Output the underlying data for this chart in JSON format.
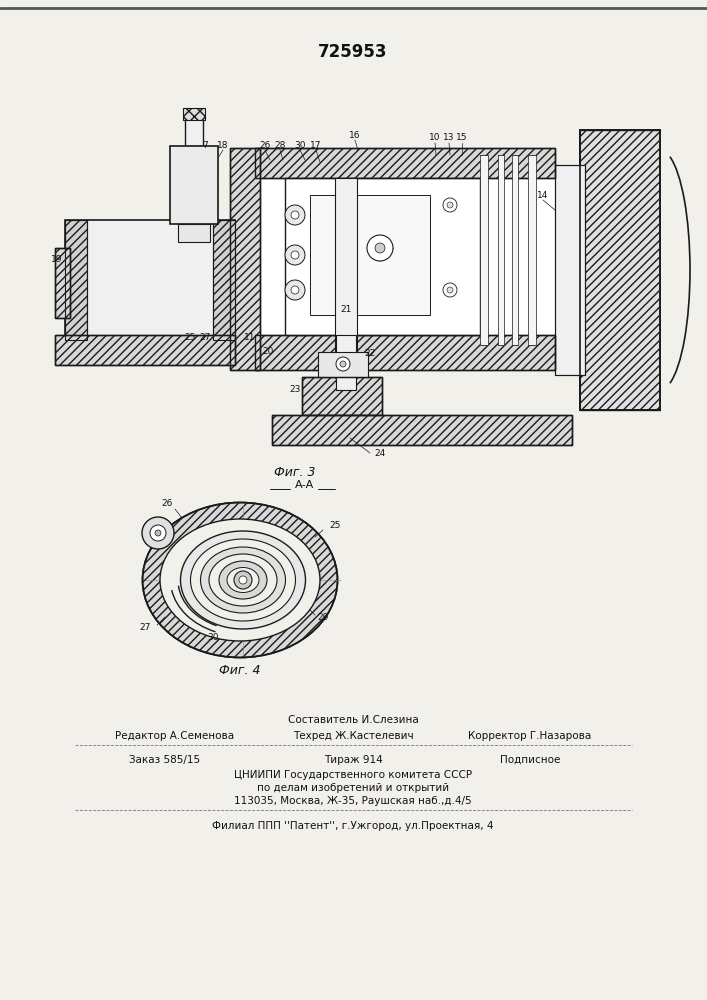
{
  "patent_number": "725953",
  "fig3_label": "Фиг. 3",
  "fig4_label": "Фиг. 4",
  "fig4_section_label": "А-А",
  "editor_line": "Редактор А.Семенова",
  "composer_line": "Составитель И.Слезина",
  "techred_line": "Техред Ж.Кастелевич",
  "corrector_line": "Корректор Г.Назарова",
  "order_line": "Заказ 585/15",
  "tirazh_line": "Тираж 914",
  "podpisnoe_line": "Подписное",
  "cniipи_line1": "ЦНИИПИ Государственного комитета СССР",
  "cniipи_line2": "по делам изобретений и открытий",
  "cniipи_line3": "113035, Москва, Ж-35, Раушская наб.,д.4/5",
  "filial_line": "Филиал ППП ''Патент'', г.Ужгород, ул.Проектная, 4",
  "bg_color": "#f2f0eb",
  "line_color": "#1a1a1a",
  "text_color": "#111111"
}
